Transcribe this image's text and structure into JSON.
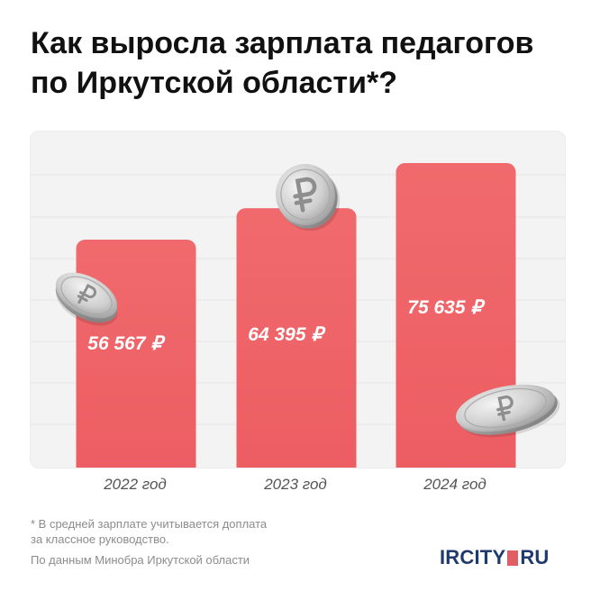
{
  "title": {
    "line1": "Как выросла зарплата педагогов",
    "line2": "по Иркутской области*?"
  },
  "chart_data": {
    "type": "bar",
    "categories": [
      "2022 год",
      "2023 год",
      "2024 год"
    ],
    "values": [
      56567,
      64395,
      75635
    ],
    "value_labels": [
      "56 567 ₽",
      "64 395 ₽",
      "75 635 ₽"
    ],
    "bar_color": "#ef6366",
    "grid": true,
    "decoration": "coin-ruble-icon"
  },
  "footnote": {
    "line1": "* В средней зарплате учитывается доплата",
    "line2": "за классное руководство."
  },
  "source": "По данным Минобра Иркутской области",
  "logo": {
    "part1": "IRCITY",
    "part2": "RU"
  }
}
